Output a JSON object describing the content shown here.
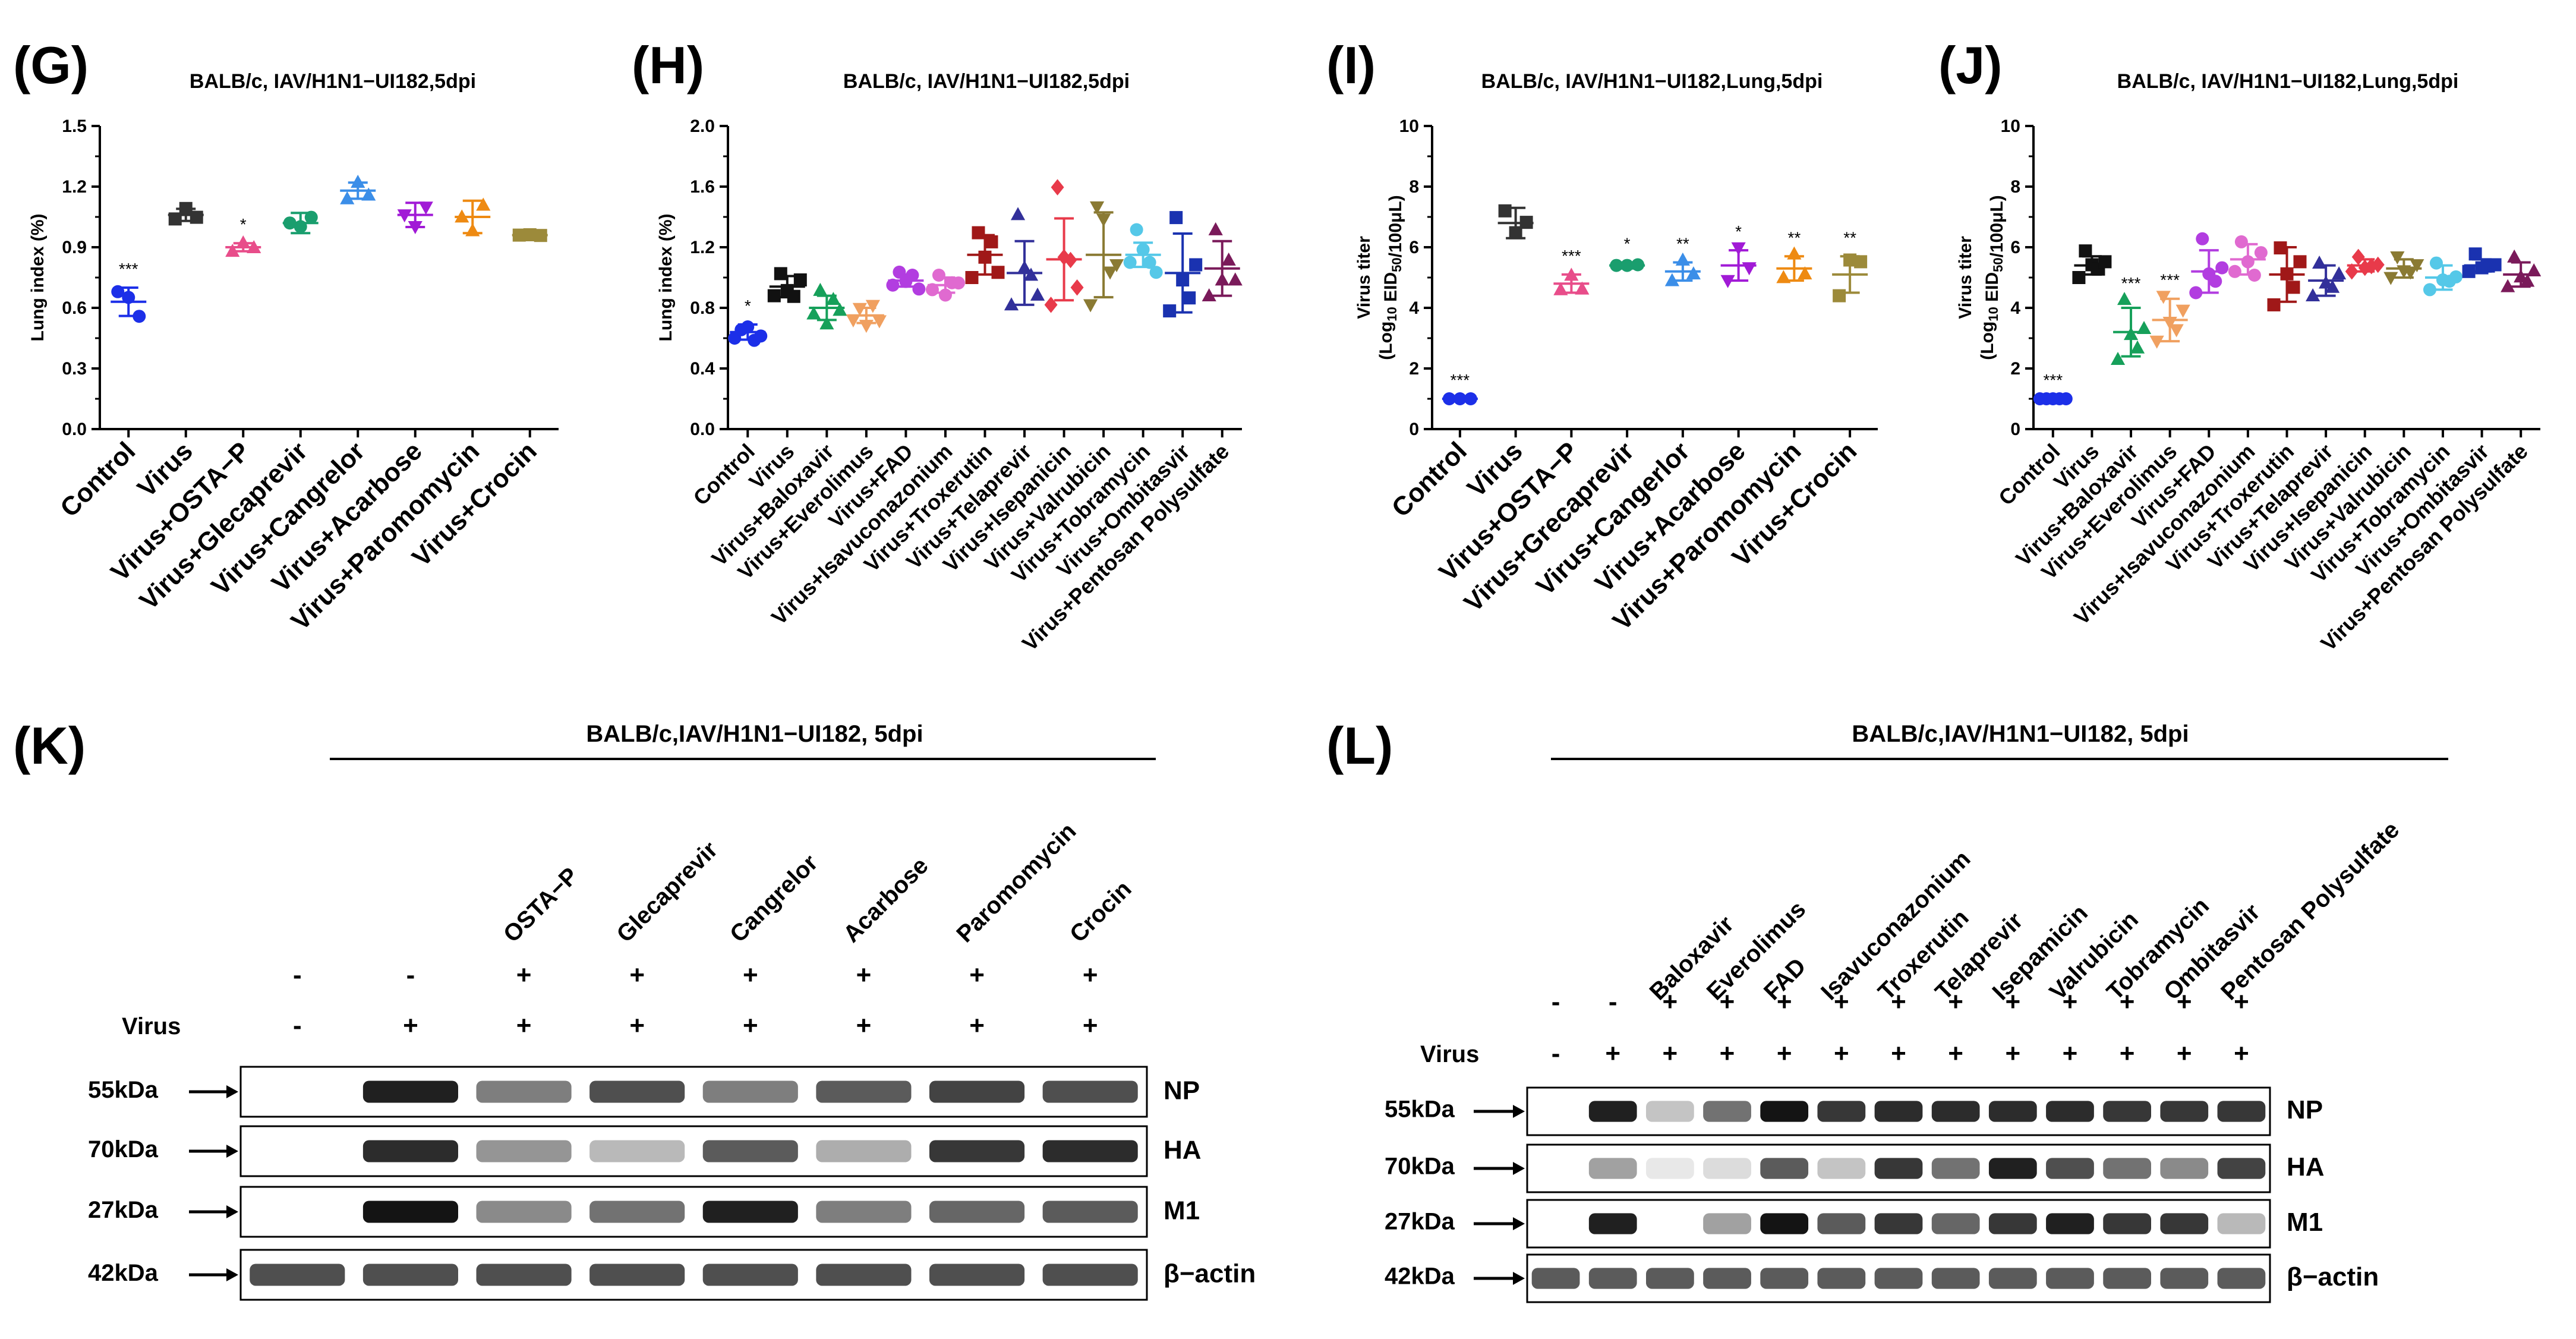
{
  "panels": {
    "G": "(G)",
    "H": "(H)",
    "I": "(I)",
    "J": "(J)",
    "K": "(K)",
    "L": "(L)"
  },
  "chart_data": [
    {
      "id": "G",
      "type": "scatter",
      "title": "BALB/c, IAV/H1N1−UI182,5dpi",
      "ylabel": "Lung index (%)",
      "ylim": [
        0,
        1.5
      ],
      "yticks": [
        "0.0",
        "0.3",
        "0.6",
        "0.9",
        "1.2",
        "1.5"
      ],
      "categories": [
        "Control",
        "Virus",
        "Virus+OSTA−P",
        "Virus+Glecaprevir",
        "Virus+Cangrelor",
        "Virus+Acarbose",
        "Virus+Paromomycin",
        "Virus+Crocin"
      ],
      "means": [
        0.63,
        1.06,
        0.9,
        1.02,
        1.18,
        1.06,
        1.05,
        0.96
      ],
      "sd": [
        0.07,
        0.03,
        0.02,
        0.05,
        0.04,
        0.06,
        0.08,
        0.02
      ],
      "points": [
        [
          0.68,
          0.64,
          0.57
        ],
        [
          1.04,
          1.08,
          1.06
        ],
        [
          0.88,
          0.91,
          0.91
        ],
        [
          1.02,
          0.99,
          1.06
        ],
        [
          1.14,
          1.21,
          1.17
        ],
        [
          1.06,
          0.99,
          1.11
        ],
        [
          1.05,
          0.97,
          1.12
        ],
        [
          0.96,
          0.95,
          0.97
        ]
      ],
      "significance": [
        "***",
        "",
        "*",
        "",
        "",
        "",
        "",
        ""
      ],
      "colors": [
        "#1c2fe8",
        "#333333",
        "#e84d8a",
        "#1a9e6e",
        "#3b8ee8",
        "#a11ad6",
        "#ee8a12",
        "#9c8a3a"
      ],
      "markers": [
        "circle",
        "square",
        "triangle",
        "circle",
        "triangle",
        "triangle-down",
        "triangle",
        "square"
      ]
    },
    {
      "id": "H",
      "type": "scatter",
      "title": "BALB/c, IAV/H1N1−UI182,5dpi",
      "ylabel": "Lung index (%)",
      "ylim": [
        0,
        2.0
      ],
      "yticks": [
        "0.0",
        "0.4",
        "0.8",
        "1.2",
        "1.6",
        "2.0"
      ],
      "categories": [
        "Control",
        "Virus",
        "Virus+Baloxavir",
        "Virus+Everolimus",
        "Virus+FAD",
        "Virus+Isavuconazonium",
        "Virus+Troxerutin",
        "Virus+Telaprevir",
        "Virus+Isepanicin",
        "Virus+Valrubicin",
        "Virus+Tobramycin",
        "Virus+Ombitasvir",
        "Virus+Pentosan Polysulfate"
      ],
      "means": [
        0.64,
        0.94,
        0.8,
        0.75,
        0.98,
        0.95,
        1.15,
        1.03,
        1.12,
        1.15,
        1.15,
        1.03,
        1.06
      ],
      "sd": [
        0.05,
        0.07,
        0.08,
        0.05,
        0.04,
        0.05,
        0.13,
        0.21,
        0.27,
        0.28,
        0.08,
        0.26,
        0.18
      ],
      "points": [
        [
          0.6,
          0.64,
          0.69,
          0.57,
          0.63
        ],
        [
          0.88,
          1.01,
          0.93,
          0.86,
          1.0
        ],
        [
          0.76,
          0.9,
          0.71,
          0.84,
          0.8
        ],
        [
          0.72,
          0.78,
          0.7,
          0.8,
          0.73
        ],
        [
          0.95,
          1.02,
          0.99,
          1.0,
          0.94
        ],
        [
          0.92,
          1.0,
          0.9,
          0.95,
          0.98
        ],
        [
          1.0,
          1.28,
          1.15,
          1.22,
          1.05
        ],
        [
          0.82,
          1.4,
          1.08,
          1.0,
          0.9
        ],
        [
          0.82,
          1.58,
          1.15,
          1.1,
          0.95
        ],
        [
          0.82,
          1.45,
          1.4,
          1.02,
          1.1
        ],
        [
          1.1,
          1.3,
          1.2,
          1.1,
          1.05
        ],
        [
          0.78,
          1.38,
          1.0,
          0.85,
          1.1
        ],
        [
          0.88,
          1.3,
          1.0,
          1.1,
          1.0
        ]
      ],
      "significance": [
        "*",
        "",
        "",
        "",
        "",
        "",
        "",
        "",
        "",
        "",
        "",
        "",
        ""
      ],
      "colors": [
        "#1c2fe8",
        "#111111",
        "#16a05a",
        "#f0a060",
        "#b23de0",
        "#e06ad0",
        "#a01818",
        "#32309a",
        "#e83a4a",
        "#8a7a33",
        "#55c8e8",
        "#1a32b0",
        "#7a1a5a"
      ],
      "markers": [
        "circle",
        "square",
        "triangle",
        "triangle-down",
        "circle",
        "circle",
        "square",
        "triangle",
        "diamond",
        "triangle-down",
        "circle",
        "square",
        "triangle"
      ]
    },
    {
      "id": "I",
      "type": "scatter",
      "title": "BALB/c, IAV/H1N1−UI182,Lung,5dpi",
      "ylabel": "Virus titer",
      "ylabel_unit": "(Log",
      "ylabel_sub": "10",
      "ylabel_unit2": " EID",
      "ylabel_sub2": "50",
      "ylabel_unit3": "/100μL)",
      "ylim": [
        0,
        10
      ],
      "yticks": [
        "0",
        "2",
        "4",
        "6",
        "8",
        "10"
      ],
      "categories": [
        "Control",
        "Virus",
        "Virus+OSTA−P",
        "Virus+Grecaprevir",
        "Virus+Cangerlor",
        "Virus+Acarbose",
        "Virus+Paromomycin",
        "Virus+Crocin"
      ],
      "means": [
        1.0,
        6.8,
        4.8,
        5.4,
        5.2,
        5.4,
        5.3,
        5.1
      ],
      "sd": [
        0.0,
        0.5,
        0.3,
        0.1,
        0.3,
        0.5,
        0.4,
        0.6
      ],
      "points": [
        [
          1.0,
          1.0,
          1.0
        ],
        [
          7.2,
          6.4,
          6.9
        ],
        [
          4.6,
          5.0,
          4.7
        ],
        [
          5.4,
          5.4,
          5.5
        ],
        [
          4.9,
          5.5,
          5.2
        ],
        [
          4.9,
          5.9,
          5.4
        ],
        [
          5.0,
          5.7,
          5.2
        ],
        [
          4.4,
          5.5,
          5.6
        ]
      ],
      "significance": [
        "***",
        "",
        "***",
        "*",
        "**",
        "*",
        "**",
        "**"
      ],
      "colors": [
        "#1c2fe8",
        "#333333",
        "#e84d8a",
        "#1a9e6e",
        "#3b8ee8",
        "#a11ad6",
        "#ee8a12",
        "#9c8a3a"
      ],
      "markers": [
        "circle",
        "square",
        "triangle",
        "circle",
        "triangle",
        "triangle-down",
        "triangle",
        "square"
      ]
    },
    {
      "id": "J",
      "type": "scatter",
      "title": "BALB/c, IAV/H1N1−UI182,Lung,5dpi",
      "ylabel": "Virus titer",
      "ylabel_unit": "(Log",
      "ylabel_sub": "10",
      "ylabel_unit2": " EID",
      "ylabel_sub2": "50",
      "ylabel_unit3": "/100μL)",
      "ylim": [
        0,
        10
      ],
      "yticks": [
        "0",
        "2",
        "4",
        "6",
        "8",
        "10"
      ],
      "categories": [
        "Control",
        "Virus",
        "Virus+Baloxavir",
        "Virus+Everolimus",
        "Virus+FAD",
        "Virus+Isavuconazonium",
        "Virus+Troxerutin",
        "Virus+Telaprevir",
        "Virus+Isepanicin",
        "Virus+Valrubicin",
        "Virus+Tobramycin",
        "Virus+Ombitasvir",
        "Virus+Pentosan Polysulfate"
      ],
      "means": [
        1.0,
        5.4,
        3.2,
        3.6,
        5.2,
        5.6,
        5.1,
        4.9,
        5.4,
        5.3,
        5.0,
        5.4,
        5.1
      ],
      "sd": [
        0.0,
        0.3,
        0.8,
        0.7,
        0.7,
        0.5,
        0.9,
        0.5,
        0.2,
        0.3,
        0.4,
        0.2,
        0.4
      ],
      "points": [
        [
          1.0,
          1.0,
          1.0,
          1.0,
          1.0
        ],
        [
          5.0,
          5.8,
          5.5,
          5.2,
          5.6
        ],
        [
          2.3,
          4.2,
          3.2,
          2.6,
          3.4
        ],
        [
          2.9,
          4.3,
          3.6,
          3.2,
          4.0
        ],
        [
          4.5,
          6.2,
          5.2,
          4.8,
          5.4
        ],
        [
          5.2,
          6.1,
          5.6,
          5.0,
          5.9
        ],
        [
          4.1,
          5.9,
          5.2,
          4.6,
          5.6
        ],
        [
          4.4,
          5.4,
          4.9,
          4.6,
          5.2
        ],
        [
          5.2,
          5.6,
          5.4,
          5.3,
          5.5
        ],
        [
          5.0,
          5.6,
          5.3,
          5.1,
          5.5
        ],
        [
          4.6,
          5.4,
          5.0,
          4.8,
          5.1
        ],
        [
          5.2,
          5.7,
          5.4,
          5.3,
          5.5
        ],
        [
          4.7,
          5.6,
          5.1,
          4.8,
          5.3
        ]
      ],
      "significance": [
        "***",
        "",
        "***",
        "***",
        "",
        "",
        "",
        "",
        "",
        "",
        "",
        "",
        ""
      ],
      "colors": [
        "#1c2fe8",
        "#111111",
        "#16a05a",
        "#f0a060",
        "#b23de0",
        "#e06ad0",
        "#a01818",
        "#32309a",
        "#e83a4a",
        "#8a7a33",
        "#55c8e8",
        "#1a32b0",
        "#7a1a5a"
      ],
      "markers": [
        "circle",
        "square",
        "triangle",
        "triangle-down",
        "circle",
        "circle",
        "square",
        "triangle",
        "diamond",
        "triangle-down",
        "circle",
        "square",
        "triangle"
      ]
    }
  ],
  "blot_k": {
    "title": "BALB/c,IAV/H1N1−UI182, 5dpi",
    "drugs": [
      "",
      "",
      "OSTA−P",
      "Glecaprevir",
      "Cangrelor",
      "Acarbose",
      "Paromomycin",
      "Crocin"
    ],
    "drug_row": [
      "-",
      "-",
      "+",
      "+",
      "+",
      "+",
      "+",
      "+"
    ],
    "virus_label": "Virus",
    "virus_row": [
      "-",
      "+",
      "+",
      "+",
      "+",
      "+",
      "+",
      "+"
    ],
    "markers": [
      "55kDa",
      "70kDa",
      "27kDa",
      "42kDa"
    ],
    "proteins": [
      "NP",
      "HA",
      "M1",
      "β−actin"
    ],
    "intensity": [
      [
        0,
        0.95,
        0.55,
        0.75,
        0.55,
        0.7,
        0.8,
        0.75
      ],
      [
        0,
        0.9,
        0.45,
        0.3,
        0.7,
        0.35,
        0.85,
        0.9
      ],
      [
        0,
        1.0,
        0.5,
        0.6,
        0.95,
        0.55,
        0.65,
        0.7
      ],
      [
        0.75,
        0.75,
        0.75,
        0.75,
        0.75,
        0.75,
        0.75,
        0.75
      ]
    ]
  },
  "blot_l": {
    "title": "BALB/c,IAV/H1N1−UI182, 5dpi",
    "drugs": [
      "",
      "",
      "Baloxavir",
      "Everolimus",
      "FAD",
      "Isavuconazonium",
      "Troxerutin",
      "Telaprevir",
      "Isepamicin",
      "Valrubicin",
      "Tobramycin",
      "Ombitasvir",
      "Pentosan Polysulfate"
    ],
    "drug_row": [
      "-",
      "-",
      "+",
      "+",
      "+",
      "+",
      "+",
      "+",
      "+",
      "+",
      "+",
      "+",
      "+"
    ],
    "virus_label": "Virus",
    "virus_row": [
      "-",
      "+",
      "+",
      "+",
      "+",
      "+",
      "+",
      "+",
      "+",
      "+",
      "+",
      "+",
      "+"
    ],
    "markers": [
      "55kDa",
      "70kDa",
      "27kDa",
      "42kDa"
    ],
    "proteins": [
      "NP",
      "HA",
      "M1",
      "β−actin"
    ],
    "intensity": [
      [
        0,
        0.95,
        0.25,
        0.6,
        1.0,
        0.85,
        0.9,
        0.9,
        0.9,
        0.9,
        0.85,
        0.85,
        0.85
      ],
      [
        0,
        0.4,
        0.1,
        0.15,
        0.7,
        0.25,
        0.85,
        0.6,
        0.95,
        0.75,
        0.6,
        0.5,
        0.8
      ],
      [
        0,
        0.95,
        0,
        0.4,
        1.0,
        0.7,
        0.85,
        0.65,
        0.85,
        0.95,
        0.85,
        0.85,
        0.3
      ],
      [
        0.7,
        0.7,
        0.7,
        0.7,
        0.7,
        0.7,
        0.7,
        0.7,
        0.7,
        0.7,
        0.7,
        0.7,
        0.7
      ]
    ]
  }
}
